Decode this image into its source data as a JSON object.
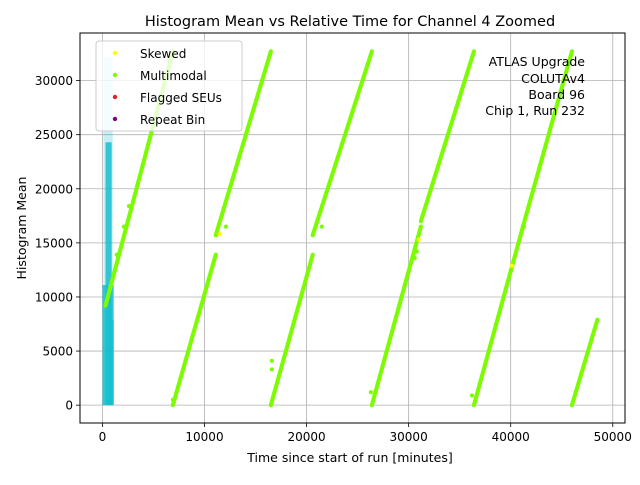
{
  "chart_data": {
    "type": "scatter",
    "title": "Histogram Mean vs Relative Time for Channel 4 Zoomed",
    "xlabel": "Time since start of run [minutes]",
    "ylabel": "Histogram Mean",
    "xlim": [
      -2200,
      51200
    ],
    "ylim": [
      -1650,
      34400
    ],
    "x_ticks": [
      0,
      10000,
      20000,
      30000,
      40000,
      50000
    ],
    "y_ticks": [
      0,
      5000,
      10000,
      15000,
      20000,
      25000,
      30000
    ],
    "grid": true,
    "legend_position": "top-left",
    "annotation": [
      "ATLAS Upgrade",
      "COLUTAv4",
      "Board 96",
      "Chip 1, Run 232"
    ],
    "series": [
      {
        "name": "Skewed",
        "color": "#ffff00"
      },
      {
        "name": "Multimodal",
        "color": "#7cfc00"
      },
      {
        "name": "Flagged SEUs",
        "color": "#d62728"
      },
      {
        "name": "Repeat Bin",
        "color": "#800080"
      }
    ],
    "multimodal_ramps": [
      {
        "x0": 6900,
        "x1": 11100,
        "y0": 0,
        "y1": 13900
      },
      {
        "x0": 11100,
        "x1": 16500,
        "y0": 15700,
        "y1": 32700
      },
      {
        "x0": 16500,
        "x1": 20600,
        "y0": 0,
        "y1": 13900
      },
      {
        "x0": 20600,
        "x1": 26400,
        "y0": 15700,
        "y1": 32700
      },
      {
        "x0": 26400,
        "x1": 31200,
        "y0": 0,
        "y1": 16500
      },
      {
        "x0": 31200,
        "x1": 36400,
        "y0": 17000,
        "y1": 32700
      },
      {
        "x0": 36400,
        "x1": 41200,
        "y0": 0,
        "y1": 16500
      },
      {
        "x0": 41200,
        "x1": 46000,
        "y0": 16500,
        "y1": 32700
      },
      {
        "x0": 46000,
        "x1": 48500,
        "y0": 0,
        "y1": 7900
      },
      {
        "x0": 300,
        "x1": 6900,
        "y0": 9200,
        "y1": 32700
      }
    ],
    "multimodal_extra_points": [
      {
        "x": 6900,
        "y": 500
      },
      {
        "x": 16600,
        "y": 4100
      },
      {
        "x": 16600,
        "y": 3300
      },
      {
        "x": 26300,
        "y": 1200
      },
      {
        "x": 36200,
        "y": 900
      },
      {
        "x": 40200,
        "y": 13100
      },
      {
        "x": 40000,
        "y": 12400
      },
      {
        "x": 1400,
        "y": 13900
      },
      {
        "x": 2100,
        "y": 16500
      },
      {
        "x": 2600,
        "y": 18400
      },
      {
        "x": 12100,
        "y": 16500
      },
      {
        "x": 21500,
        "y": 16500
      },
      {
        "x": 30600,
        "y": 13600
      },
      {
        "x": 30800,
        "y": 14200
      },
      {
        "x": 31200,
        "y": 16500
      },
      {
        "x": 41300,
        "y": 16500
      }
    ],
    "skewed_points": [
      {
        "x": 11500,
        "y": 15800
      },
      {
        "x": 31000,
        "y": 15300
      },
      {
        "x": 40100,
        "y": 12900
      }
    ],
    "cyan_band": {
      "color": "#17becf",
      "bars": [
        {
          "x0": 0,
          "x1": 1100,
          "y0": 0,
          "y1": 11100
        },
        {
          "x0": 100,
          "x1": 1000,
          "y0": 0,
          "y1": 32200
        },
        {
          "x0": 300,
          "x1": 900,
          "y0": 0,
          "y1": 24300
        },
        {
          "x0": 600,
          "x1": 1100,
          "y0": 0,
          "y1": 7900
        }
      ]
    }
  }
}
